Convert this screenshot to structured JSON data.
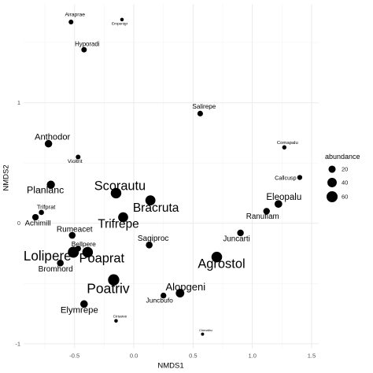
{
  "chart_data": {
    "type": "scatter",
    "xlabel": "NMDS1",
    "ylabel": "NMDS2",
    "xlim": [
      -0.93,
      1.56
    ],
    "ylim": [
      -1.04,
      1.82
    ],
    "x_ticks": [
      -0.5,
      0,
      0.5,
      1,
      1.5
    ],
    "x_tick_labels": [
      "-0.5",
      "0.0",
      "0.5",
      "1.0",
      "1.5"
    ],
    "y_ticks": [
      -1,
      0,
      1
    ],
    "y_tick_labels": [
      "-1",
      "0",
      "1"
    ],
    "grid": true,
    "point_color": "#000000",
    "grid_color": "#EBEBEB",
    "legend": {
      "title": "abundance",
      "position": "right",
      "values": [
        20,
        40,
        60
      ],
      "labels": [
        "20",
        "40",
        "60"
      ]
    },
    "points": [
      {
        "label": "Airaprae",
        "x": -0.53,
        "y": 1.67,
        "abundance": 6
      },
      {
        "label": "Empenigr",
        "x": -0.1,
        "y": 1.69,
        "abundance": 2
      },
      {
        "label": "Hyporadi",
        "x": -0.42,
        "y": 1.44,
        "abundance": 9
      },
      {
        "label": "Salirepe",
        "x": 0.56,
        "y": 0.91,
        "abundance": 10
      },
      {
        "label": "Anthodor",
        "x": -0.72,
        "y": 0.66,
        "abundance": 22
      },
      {
        "label": "Violtrit",
        "x": -0.47,
        "y": 0.55,
        "abundance": 6
      },
      {
        "label": "Comapalu",
        "x": 1.27,
        "y": 0.63,
        "abundance": 4
      },
      {
        "label": "Callcusp",
        "x": 1.4,
        "y": 0.38,
        "abundance": 7
      },
      {
        "label": "Planlanc",
        "x": -0.7,
        "y": 0.32,
        "abundance": 28
      },
      {
        "label": "Scorautu",
        "x": -0.15,
        "y": 0.25,
        "abundance": 54
      },
      {
        "label": "Bracruta",
        "x": 0.14,
        "y": 0.19,
        "abundance": 48
      },
      {
        "label": "Eleopalu",
        "x": 1.22,
        "y": 0.16,
        "abundance": 24
      },
      {
        "label": "Ranuflam",
        "x": 1.12,
        "y": 0.1,
        "abundance": 16
      },
      {
        "label": "Trifprat",
        "x": -0.78,
        "y": 0.09,
        "abundance": 8
      },
      {
        "label": "Achimill",
        "x": -0.83,
        "y": 0.05,
        "abundance": 15
      },
      {
        "label": "Trifrepe",
        "x": -0.09,
        "y": 0.05,
        "abundance": 47
      },
      {
        "label": "Juncarti",
        "x": 0.9,
        "y": -0.08,
        "abundance": 16
      },
      {
        "label": "Rumeacet",
        "x": -0.52,
        "y": -0.1,
        "abundance": 17
      },
      {
        "label": "Sagiproc",
        "x": 0.13,
        "y": -0.18,
        "abundance": 17
      },
      {
        "label": "Bellpere",
        "x": -0.47,
        "y": -0.21,
        "abundance": 11
      },
      {
        "label": "Lolipere",
        "x": -0.51,
        "y": -0.24,
        "abundance": 60
      },
      {
        "label": "Poaprat",
        "x": -0.39,
        "y": -0.24,
        "abundance": 55
      },
      {
        "label": "Bromhord",
        "x": -0.62,
        "y": -0.33,
        "abundance": 17
      },
      {
        "label": "Agrostol",
        "x": 0.7,
        "y": -0.28,
        "abundance": 55
      },
      {
        "label": "Poatriv",
        "x": -0.17,
        "y": -0.47,
        "abundance": 63
      },
      {
        "label": "Alopgeni",
        "x": 0.39,
        "y": -0.58,
        "abundance": 32
      },
      {
        "label": "Juncbufo",
        "x": 0.25,
        "y": -0.6,
        "abundance": 11
      },
      {
        "label": "Elymrepe",
        "x": -0.42,
        "y": -0.67,
        "abundance": 23
      },
      {
        "label": "Cirsarve",
        "x": -0.15,
        "y": -0.81,
        "abundance": 2
      },
      {
        "label": "Chenalbu",
        "x": 0.58,
        "y": -0.92,
        "abundance": 1
      }
    ]
  }
}
